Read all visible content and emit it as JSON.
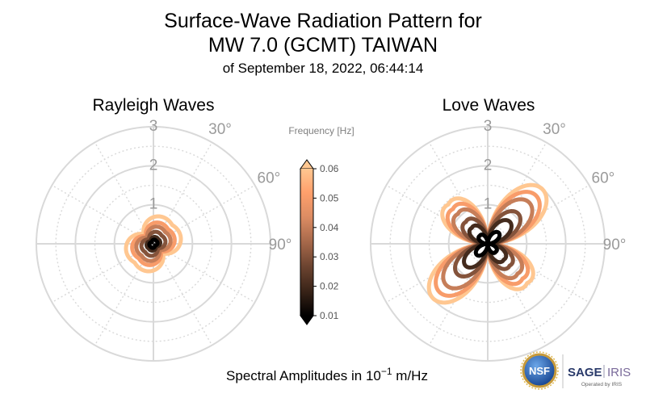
{
  "title": {
    "line1": "Surface-Wave Radiation Pattern for",
    "line2": "MW 7.0 (GCMT) TAIWAN",
    "line3": "of September 18, 2022, 06:44:14"
  },
  "footer": {
    "label_prefix": "Spectral Amplitudes in ",
    "label_base": "10",
    "label_exp": "−1",
    "label_suffix": " m/Hz"
  },
  "logos": {
    "nsf": "NSF",
    "sage": "SAGE",
    "iris": "IRIS",
    "operated": "Operated by IRIS"
  },
  "colors": {
    "grid": "#d9d9d9",
    "tick": "#9a9a9a",
    "cmap": [
      "#000000",
      "#3a2418",
      "#6e4531",
      "#a6684a",
      "#dc8c63",
      "#ffa06c",
      "#ffc791"
    ]
  },
  "chart_data": {
    "type": "polar",
    "radial_ticks": [
      "1",
      "2",
      "3"
    ],
    "angle_ticks": [
      "30°",
      "60°",
      "90°"
    ],
    "rlim": [
      0,
      3
    ],
    "grid": true,
    "colorbar": {
      "label": "Frequency [Hz]",
      "ticks": [
        "0.01",
        "0.02",
        "0.03",
        "0.04",
        "0.05",
        "0.06"
      ],
      "range": [
        0.01,
        0.06
      ],
      "extend": "both"
    },
    "panels": [
      {
        "title": "Rayleigh Waves",
        "pattern": "rayleigh",
        "series": [
          {
            "frequency": 0.01,
            "amplitude": 0.12
          },
          {
            "frequency": 0.02,
            "amplitude": 0.2
          },
          {
            "frequency": 0.03,
            "amplitude": 0.35
          },
          {
            "frequency": 0.04,
            "amplitude": 0.5
          },
          {
            "frequency": 0.05,
            "amplitude": 0.62
          },
          {
            "frequency": 0.06,
            "amplitude": 0.8
          }
        ]
      },
      {
        "title": "Love Waves",
        "pattern": "love",
        "series": [
          {
            "frequency": 0.01,
            "amplitude": 0.4
          },
          {
            "frequency": 0.02,
            "amplitude": 0.8
          },
          {
            "frequency": 0.03,
            "amplitude": 1.1
          },
          {
            "frequency": 0.04,
            "amplitude": 1.5
          },
          {
            "frequency": 0.05,
            "amplitude": 1.75
          },
          {
            "frequency": 0.06,
            "amplitude": 1.98
          }
        ]
      }
    ]
  }
}
